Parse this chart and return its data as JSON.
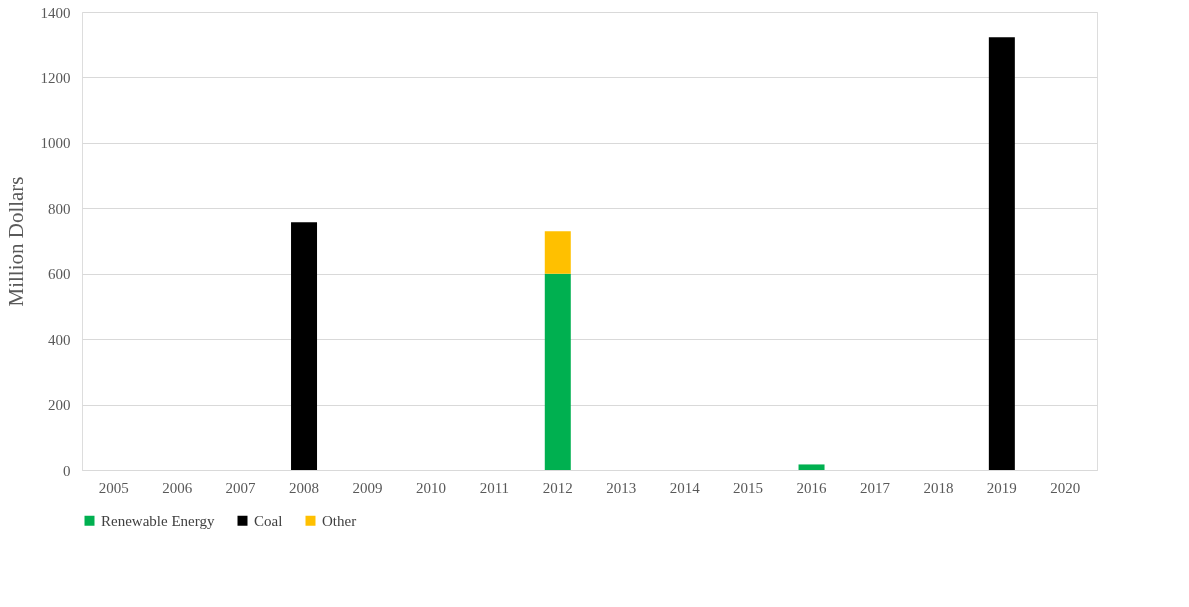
{
  "chart_data": {
    "type": "bar",
    "stacked": true,
    "ylabel": "Million Dollars",
    "categories": [
      "2005",
      "2006",
      "2007",
      "2008",
      "2009",
      "2010",
      "2011",
      "2012",
      "2013",
      "2014",
      "2015",
      "2016",
      "2017",
      "2018",
      "2019",
      "2020"
    ],
    "series": [
      {
        "name": "Renewable Energy",
        "color": "#00b050",
        "values": [
          null,
          null,
          null,
          null,
          null,
          null,
          null,
          600,
          null,
          null,
          null,
          17,
          null,
          null,
          null,
          null
        ]
      },
      {
        "name": "Coal",
        "color": "#000000",
        "values": [
          null,
          null,
          null,
          757,
          null,
          null,
          null,
          null,
          null,
          null,
          null,
          null,
          null,
          null,
          1323,
          null
        ]
      },
      {
        "name": "Other",
        "color": "#ffc000",
        "values": [
          null,
          null,
          null,
          null,
          null,
          null,
          null,
          130,
          null,
          null,
          null,
          null,
          null,
          null,
          null,
          null
        ]
      }
    ],
    "ylim": [
      0,
      1400
    ],
    "yticks": [
      0,
      200,
      400,
      600,
      800,
      1000,
      1200,
      1400
    ],
    "grid": "y",
    "legend": "bottom"
  }
}
